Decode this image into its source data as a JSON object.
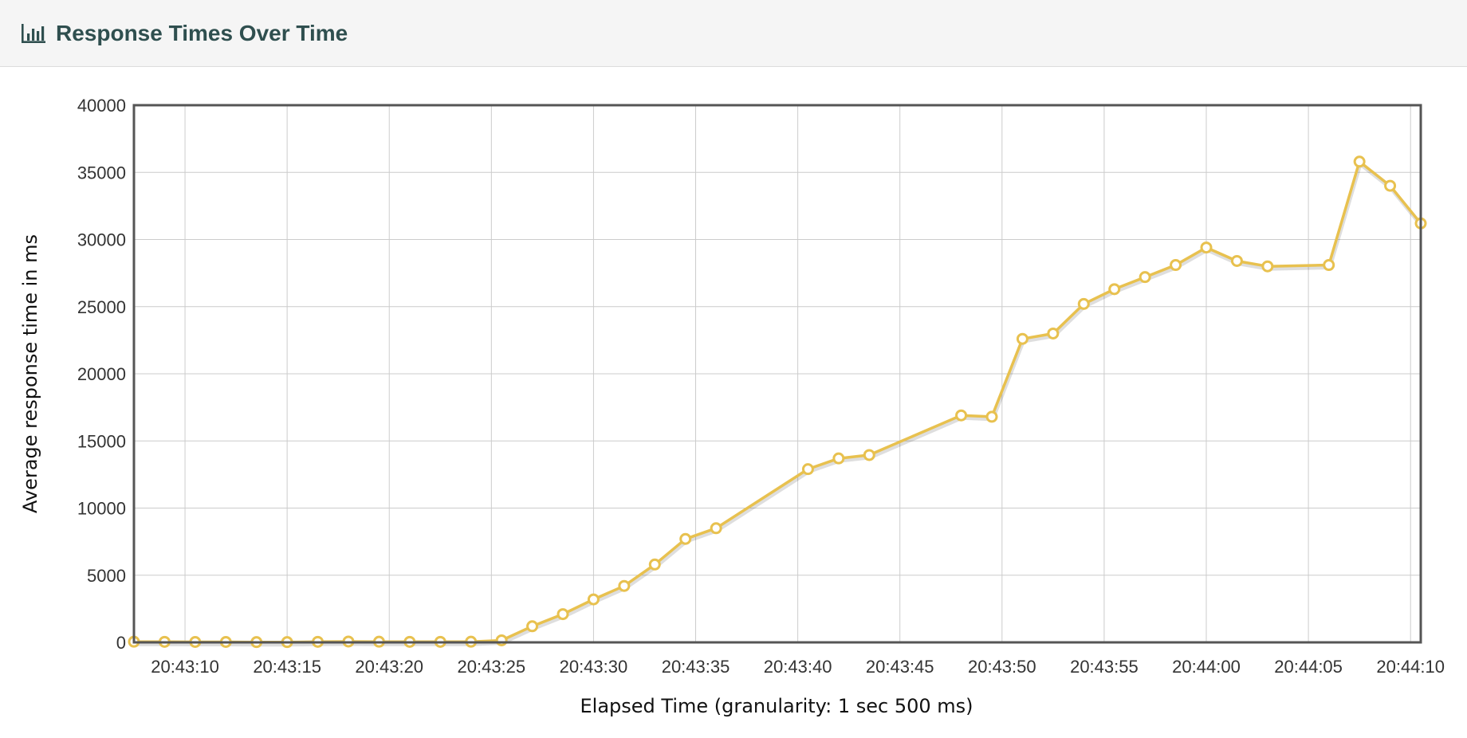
{
  "header": {
    "title": "Response Times Over Time",
    "icon": "bar-chart-icon"
  },
  "chart_data": {
    "type": "line",
    "xlabel": "Elapsed Time (granularity: 1 sec 500 ms)",
    "ylabel": "Average response time in ms",
    "ylim": [
      0,
      40000
    ],
    "yticks": [
      0,
      5000,
      10000,
      15000,
      20000,
      25000,
      30000,
      35000,
      40000
    ],
    "xlim": [
      "20:43:07.5",
      "20:44:10.5"
    ],
    "xticks": [
      "20:43:10",
      "20:43:15",
      "20:43:20",
      "20:43:25",
      "20:43:30",
      "20:43:35",
      "20:43:40",
      "20:43:45",
      "20:43:50",
      "20:43:55",
      "20:44:00",
      "20:44:05",
      "20:44:10"
    ],
    "grid": true,
    "color": "#e8c14f",
    "series": [
      {
        "points": [
          [
            "20:43:07.5",
            50
          ],
          [
            "20:43:09.0",
            40
          ],
          [
            "20:43:10.5",
            30
          ],
          [
            "20:43:12.0",
            30
          ],
          [
            "20:43:13.5",
            20
          ],
          [
            "20:43:15.0",
            20
          ],
          [
            "20:43:16.5",
            40
          ],
          [
            "20:43:18.0",
            60
          ],
          [
            "20:43:19.5",
            50
          ],
          [
            "20:43:21.0",
            40
          ],
          [
            "20:43:22.5",
            40
          ],
          [
            "20:43:24.0",
            50
          ],
          [
            "20:43:25.5",
            150
          ],
          [
            "20:43:27.0",
            1200
          ],
          [
            "20:43:28.5",
            2100
          ],
          [
            "20:43:30.0",
            3200
          ],
          [
            "20:43:31.5",
            4200
          ],
          [
            "20:43:33.0",
            5800
          ],
          [
            "20:43:34.5",
            7700
          ],
          [
            "20:43:36.0",
            8500
          ],
          [
            "20:43:40.5",
            12900
          ],
          [
            "20:43:42.0",
            13700
          ],
          [
            "20:43:43.5",
            13950
          ],
          [
            "20:43:48.0",
            16900
          ],
          [
            "20:43:49.5",
            16800
          ],
          [
            "20:43:51.0",
            22600
          ],
          [
            "20:43:52.5",
            23000
          ],
          [
            "20:43:54.0",
            25200
          ],
          [
            "20:43:55.5",
            26300
          ],
          [
            "20:43:57.0",
            27200
          ],
          [
            "20:43:58.5",
            28100
          ],
          [
            "20:44:00.0",
            29400
          ],
          [
            "20:44:01.5",
            28400
          ],
          [
            "20:44:03.0",
            28000
          ],
          [
            "20:44:06.0",
            28100
          ],
          [
            "20:44:07.5",
            35800
          ],
          [
            "20:44:09.0",
            34000
          ],
          [
            "20:44:10.5",
            31200
          ]
        ]
      }
    ]
  }
}
